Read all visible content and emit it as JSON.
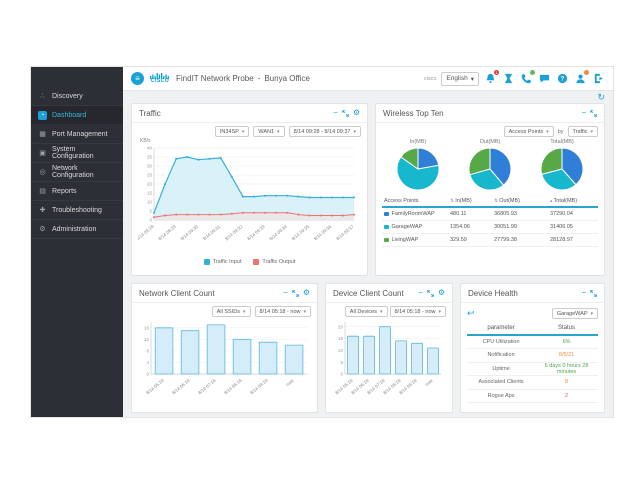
{
  "ui": {
    "caret": "▾",
    "minimize": "−",
    "gear": "⚙",
    "refresh": "↻",
    "back": "↩",
    "menu": "≡",
    "help_mark": "?"
  },
  "colors": {
    "accent_blue": "#1ba0d7",
    "pie_blue": "#2f7fd8",
    "pie_teal": "#17b7ce",
    "pie_green": "#57a948",
    "traffic_input": "#35b0dc",
    "traffic_input_fill": "#d9f1f9",
    "traffic_output": "#ee7470",
    "traffic_output_fill": "#e9e9eb",
    "bar_fill": "#d4edf8",
    "bar_stroke": "#5bb7dc",
    "status_green": "#4ca64c",
    "status_orange": "#e8913d",
    "status_red": "#e25c5c"
  },
  "sidebar": {
    "items": [
      {
        "label": "Discovery",
        "icon": "discovery-icon",
        "glyph": "∴",
        "active": false
      },
      {
        "label": "Dashboard",
        "icon": "dashboard-icon",
        "glyph": "◔",
        "active": true
      },
      {
        "label": "Port Management",
        "icon": "port-management-icon",
        "glyph": "▦",
        "active": false
      },
      {
        "label": "System Configuration",
        "icon": "system-configuration-icon",
        "glyph": "▣",
        "active": false
      },
      {
        "label": "Network Configuration",
        "icon": "network-configuration-icon",
        "glyph": "◎",
        "active": false
      },
      {
        "label": "Reports",
        "icon": "reports-icon",
        "glyph": "▤",
        "active": false
      },
      {
        "label": "Troubleshooting",
        "icon": "troubleshooting-icon",
        "glyph": "✚",
        "active": false
      },
      {
        "label": "Administration",
        "icon": "administration-icon",
        "glyph": "⚙",
        "active": false
      }
    ]
  },
  "header": {
    "app_title": "FindIT Network Probe",
    "separator": "-",
    "site_name": "Bunya Office",
    "brand": "cisco",
    "brand_small": "cisco",
    "language": {
      "value": "English"
    },
    "bell_badge": "1"
  },
  "panels": {
    "traffic": {
      "title": "Traffic",
      "controls": [
        {
          "label": "IN34SP"
        },
        {
          "label": "WAN1"
        },
        {
          "label": "8/14 09:28 - 8/14 09:37"
        }
      ],
      "legend": [
        {
          "label": "Traffic Input",
          "colorKey": "traffic_input"
        },
        {
          "label": "Traffic Output",
          "colorKey": "traffic_output"
        }
      ],
      "chart": {
        "type": "line",
        "ylabel": "KB/s",
        "ymax": 40,
        "yticks": [
          0,
          5,
          10,
          15,
          20,
          25,
          30,
          35,
          40
        ],
        "xlabels": [
          "8/14 09:28",
          "8/14 09:29",
          "8/14 09:30",
          "8/14 09:31",
          "8/14 09:32",
          "8/14 09:33",
          "8/14 09:34",
          "8/14 09:35",
          "8/14 09:36",
          "8/14 09:37"
        ],
        "series": [
          {
            "name": "Traffic Input",
            "points": [
              [
                0,
                4
              ],
              [
                0.5,
                20
              ],
              [
                1,
                34
              ],
              [
                1.5,
                35
              ],
              [
                2,
                33.5
              ],
              [
                2.5,
                34
              ],
              [
                3,
                34.5
              ],
              [
                3.5,
                24
              ],
              [
                4,
                13
              ],
              [
                4.5,
                13
              ],
              [
                5,
                13.5
              ],
              [
                5.5,
                13.5
              ],
              [
                6,
                13.5
              ],
              [
                6.5,
                13
              ],
              [
                7,
                12.5
              ],
              [
                7.5,
                12.5
              ],
              [
                8,
                12.5
              ],
              [
                8.5,
                12.5
              ],
              [
                9,
                12.5
              ]
            ]
          },
          {
            "name": "Traffic Output",
            "points": [
              [
                0,
                1.5
              ],
              [
                0.5,
                2.5
              ],
              [
                1,
                3
              ],
              [
                1.5,
                3
              ],
              [
                2,
                3
              ],
              [
                2.5,
                3
              ],
              [
                3,
                3
              ],
              [
                3.5,
                3.5
              ],
              [
                4,
                4
              ],
              [
                4.5,
                4
              ],
              [
                5,
                4
              ],
              [
                5.5,
                4
              ],
              [
                6,
                4
              ],
              [
                6.5,
                3
              ],
              [
                7,
                2.5
              ],
              [
                7.5,
                2.5
              ],
              [
                8,
                2.5
              ],
              [
                8.5,
                2.5
              ],
              [
                9,
                3
              ]
            ]
          }
        ]
      }
    },
    "wireless": {
      "title": "Wireless Top Ten",
      "controls": {
        "primary": "Access Points",
        "by": "by",
        "secondary": "Traffic"
      },
      "pies": [
        {
          "label": "In(MB)",
          "values": [
            480.11,
            1354.06,
            329.59
          ]
        },
        {
          "label": "Out(MB)",
          "values": [
            36805.93,
            30051.99,
            27799.38
          ]
        },
        {
          "label": "Total(MB)",
          "values": [
            37290.04,
            31406.05,
            28128.97
          ]
        }
      ],
      "table": {
        "headers": [
          {
            "label": "Access Points",
            "sort": ""
          },
          {
            "label": "In(MB)",
            "sort": "⇅"
          },
          {
            "label": "Out(MB)",
            "sort": "⇅"
          },
          {
            "label": "Total(MB)",
            "sort": "▴"
          }
        ],
        "rows": [
          {
            "name": "FamilyRoomWAP",
            "colorKey": "pie_blue",
            "in": "480.11",
            "out": "36805.93",
            "total": "37290.04"
          },
          {
            "name": "GarageWAP",
            "colorKey": "pie_teal",
            "in": "1354.06",
            "out": "30051.99",
            "total": "31406.05"
          },
          {
            "name": "LivingWAP",
            "colorKey": "pie_green",
            "in": "329.59",
            "out": "27799.38",
            "total": "28128.97"
          }
        ]
      }
    },
    "network_client_count": {
      "title": "Network Client Count",
      "controls": [
        {
          "label": "All SSIDs"
        },
        {
          "label": "8/14 05:18 - now"
        }
      ],
      "chart": {
        "type": "bar",
        "yticks": [
          0,
          4,
          8,
          12,
          16
        ],
        "scale_max": 18,
        "categories": [
          "8/14 05:18",
          "8/14 06:18",
          "8/14 07:18",
          "8/14 08:18",
          "8/14 09:18",
          "now"
        ],
        "values": [
          16,
          15,
          17,
          12,
          11,
          10
        ]
      }
    },
    "device_client_count": {
      "title": "Device Client Count",
      "controls": [
        {
          "label": "All Devices"
        },
        {
          "label": "8/14 05:18 - now"
        }
      ],
      "chart": {
        "type": "bar",
        "yticks": [
          0,
          5,
          10,
          15,
          20
        ],
        "scale_max": 22,
        "categories": [
          "8/14 05:18",
          "8/14 06:18",
          "8/14 07:18",
          "8/14 08:18",
          "8/14 09:18",
          "now"
        ],
        "values": [
          16,
          16,
          20,
          14,
          13,
          11
        ]
      }
    },
    "device_health": {
      "title": "Device Health",
      "device_selector": "GarageWAP",
      "table": {
        "headers": {
          "parameter": "parameter",
          "status": "Status"
        },
        "rows": [
          {
            "parameter": "CPU Utilization",
            "status": "6%",
            "colorKey": "status_green"
          },
          {
            "parameter": "Notification",
            "status": "8/5/21",
            "colorKey": "status_orange"
          },
          {
            "parameter": "Uptime",
            "status": "6 days 0 hours 28 minutes",
            "colorKey": "status_green"
          },
          {
            "parameter": "Associated Clients",
            "status": "8",
            "colorKey": "status_orange"
          },
          {
            "parameter": "Rogue Aps",
            "status": "2",
            "colorKey": "status_red"
          }
        ]
      }
    }
  }
}
